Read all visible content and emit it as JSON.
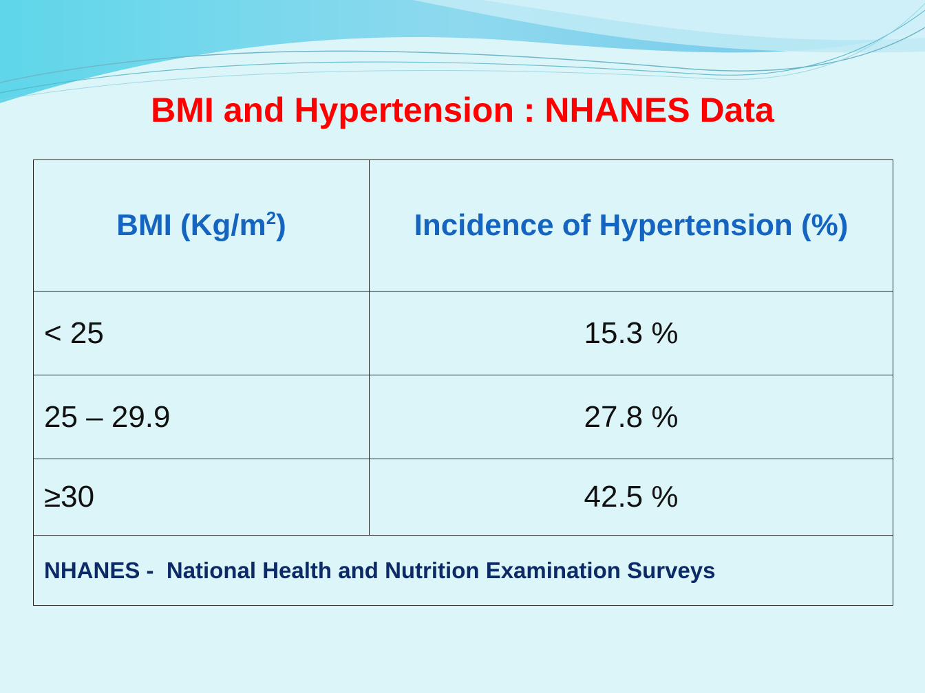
{
  "title": "BMI and Hypertension : NHANES Data",
  "colors": {
    "title": "#ff0000",
    "header_text": "#1565c0",
    "footnote_text": "#0c2a66",
    "background": "#dcf5f9"
  },
  "table": {
    "header": {
      "bmi_label": "BMI (Kg/m",
      "bmi_superscript": "2",
      "bmi_close": ")",
      "incidence_label": "Incidence of Hypertension (%)"
    },
    "rows": [
      {
        "bmi": "< 25",
        "incidence": "15.3 %"
      },
      {
        "bmi": "25 – 29.9",
        "incidence": "27.8 %"
      },
      {
        "bmi": "≥30",
        "incidence": "42.5 %"
      }
    ],
    "footnote": {
      "abbr": "NHANES -",
      "full": "National Health and Nutrition Examination Surveys"
    }
  }
}
